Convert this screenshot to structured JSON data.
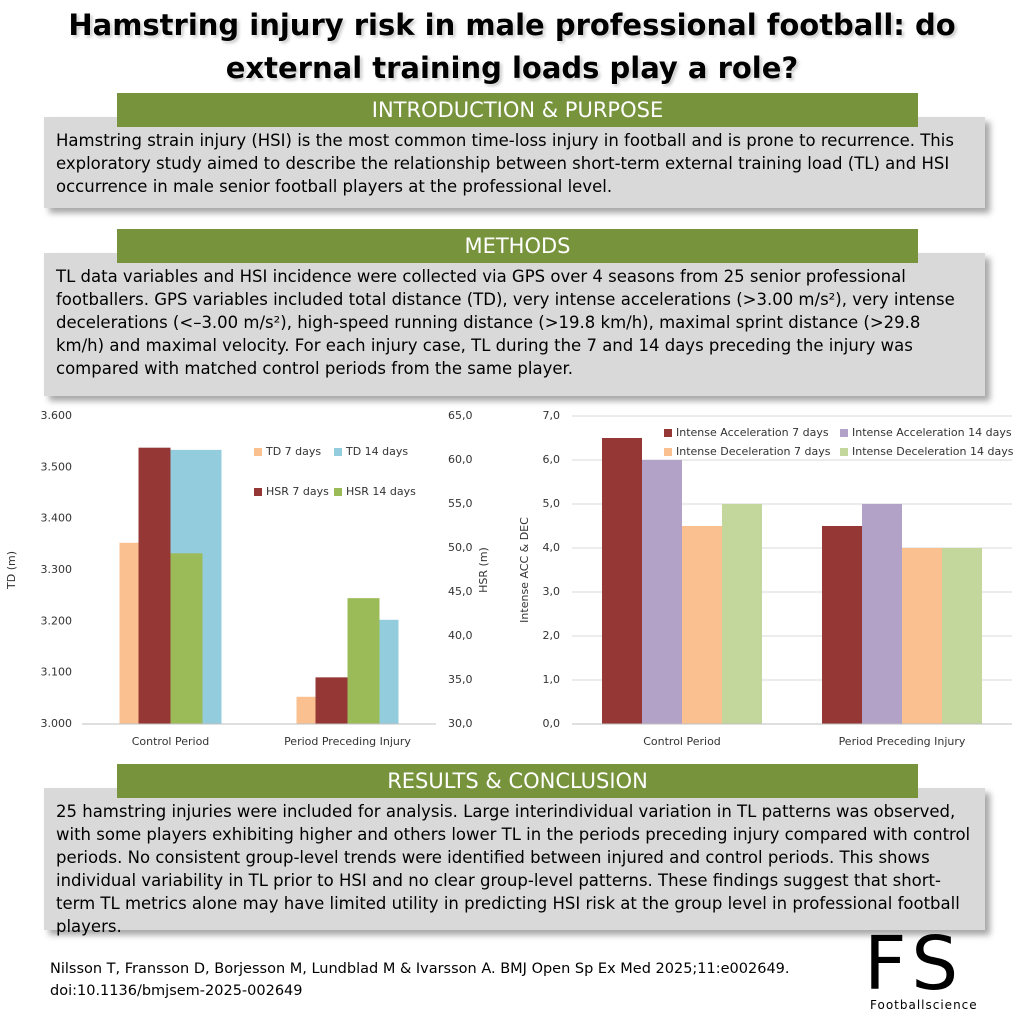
{
  "title": "Hamstring injury risk in male professional football: do external training loads play a role?",
  "sections": [
    {
      "heading": "INTRODUCTION & PURPOSE",
      "body": "Hamstring strain injury (HSI) is the most common time-loss injury in football and is prone to recurrence. This exploratory study aimed to describe the relationship between short-term external training load (TL) and HSI occurrence in male senior football players at the professional level."
    },
    {
      "heading": "METHODS",
      "body": "TL data variables and HSI incidence were collected via GPS over 4 seasons from 25 senior professional footballers. GPS variables included total distance (TD), very intense accelerations (>3.00 m/s²), very intense decelerations (<–3.00 m/s²), high-speed running distance (>19.8 km/h), maximal sprint distance (>29.8 km/h) and maximal velocity. For each injury case, TL during the 7 and 14 days preceding the injury was compared with matched control periods from the same player."
    },
    {
      "heading": "RESULTS & CONCLUSION",
      "body": "25 hamstring injuries were included for analysis. Large interindividual variation in TL patterns was observed, with some players exhibiting higher and others lower TL in the periods preceding injury compared with control periods. No consistent group-level trends were identified between injured and control periods. This shows individual variability in TL prior to HSI and no clear group-level patterns. These findings suggest that short-term TL metrics alone may have limited utility in predicting HSI risk at the group level in professional football players."
    }
  ],
  "chart_data": [
    {
      "type": "bar",
      "categories": [
        "Control Period",
        "Period Preceding Injury"
      ],
      "ylabel": "TD (m)",
      "y2label": "HSR (m)",
      "ylim": [
        3000,
        3600
      ],
      "yticks": [
        {
          "value": 3000,
          "label": "3.000"
        },
        {
          "value": 3100,
          "label": "3.100"
        },
        {
          "value": 3200,
          "label": "3.200"
        },
        {
          "value": 3300,
          "label": "3.300"
        },
        {
          "value": 3400,
          "label": "3.400"
        },
        {
          "value": 3500,
          "label": "3.500"
        },
        {
          "value": 3600,
          "label": "3.600"
        }
      ],
      "y2lim": [
        30,
        65
      ],
      "y2ticks": [
        {
          "value": 30,
          "label": "30,0"
        },
        {
          "value": 35,
          "label": "35,0"
        },
        {
          "value": 40,
          "label": "40,0"
        },
        {
          "value": 45,
          "label": "45,0"
        },
        {
          "value": 50,
          "label": "50,0"
        },
        {
          "value": 55,
          "label": "55,0"
        },
        {
          "value": 60,
          "label": "60,0"
        },
        {
          "value": 65,
          "label": "65,0"
        }
      ],
      "grid": false,
      "series": [
        {
          "name": "TD 7 days",
          "color": "#fac090",
          "values": [
            3353,
            3053
          ]
        },
        {
          "name": "TD 14 days",
          "color": "#93cddd",
          "values": [
            3534,
            3203
          ]
        },
        {
          "name": "HSR 7 days",
          "color": "#953735",
          "axis": "y2",
          "values": [
            61.4,
            35.3
          ]
        },
        {
          "name": "HSR 14 days",
          "color": "#9bbb59",
          "axis": "y2",
          "values": [
            49.4,
            44.3
          ]
        }
      ]
    },
    {
      "type": "bar",
      "categories": [
        "Control Period",
        "Period Preceding Injury"
      ],
      "ylabel": "Intense ACC & DEC",
      "ylim": [
        0,
        7
      ],
      "yticks": [
        {
          "value": 0,
          "label": "0,0"
        },
        {
          "value": 1,
          "label": "1,0"
        },
        {
          "value": 2,
          "label": "2,0"
        },
        {
          "value": 3,
          "label": "3,0"
        },
        {
          "value": 4,
          "label": "4,0"
        },
        {
          "value": 5,
          "label": "5,0"
        },
        {
          "value": 6,
          "label": "6,0"
        },
        {
          "value": 7,
          "label": "7,0"
        }
      ],
      "grid": true,
      "series": [
        {
          "name": "Intense Acceleration 7 days",
          "color": "#953735",
          "values": [
            6.5,
            4.5
          ]
        },
        {
          "name": "Intense Acceleration 14 days",
          "color": "#b3a2c7",
          "values": [
            6.0,
            5.0
          ]
        },
        {
          "name": "Intense Deceleration 7 days",
          "color": "#fac090",
          "values": [
            4.5,
            4.0
          ]
        },
        {
          "name": "Intense Deceleration 14 days",
          "color": "#c3d69b",
          "values": [
            5.0,
            4.0
          ]
        }
      ]
    }
  ],
  "citation": [
    "Nilsson T, Fransson D, Borjesson M, Lundblad M & Ivarsson A. BMJ Open Sp Ex Med 2025;11:e002649.",
    "doi:10.1136/bmjsem-2025-002649"
  ],
  "logo": {
    "mark": "FS",
    "text": "Footballscience"
  }
}
